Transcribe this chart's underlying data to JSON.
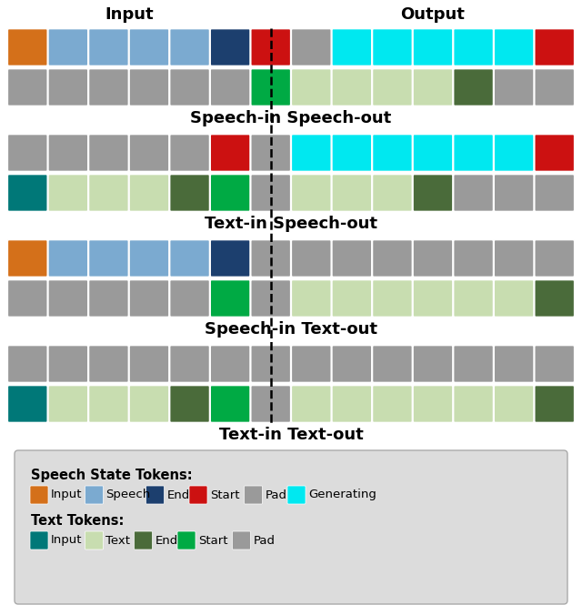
{
  "colors": {
    "speech_input": "#D4701A",
    "speech_token": "#7BAAD0",
    "speech_end": "#1C3F6E",
    "speech_start": "#CC1111",
    "speech_pad": "#9A9A9A",
    "speech_generating": "#00E8F0",
    "text_input": "#007878",
    "text_token": "#C8DDB0",
    "text_end": "#4A6B3A",
    "text_start": "#00AA44",
    "text_pad": "#9A9A9A"
  },
  "sections": [
    {
      "label": "Speech-in Speech-out",
      "row1": [
        "speech_input",
        "speech_token",
        "speech_token",
        "speech_token",
        "speech_token",
        "speech_end",
        "speech_start",
        "speech_pad",
        "speech_generating",
        "speech_generating",
        "speech_generating",
        "speech_generating",
        "speech_generating",
        "speech_start"
      ],
      "row2": [
        "speech_pad",
        "speech_pad",
        "speech_pad",
        "speech_pad",
        "speech_pad",
        "speech_pad",
        "text_start",
        "text_token",
        "text_token",
        "text_token",
        "text_token",
        "text_end",
        "speech_pad",
        "speech_pad"
      ]
    },
    {
      "label": "Text-in Speech-out",
      "row1": [
        "speech_pad",
        "speech_pad",
        "speech_pad",
        "speech_pad",
        "speech_pad",
        "speech_start",
        "speech_pad",
        "speech_generating",
        "speech_generating",
        "speech_generating",
        "speech_generating",
        "speech_generating",
        "speech_generating",
        "speech_start"
      ],
      "row2": [
        "text_input",
        "text_token",
        "text_token",
        "text_token",
        "text_end",
        "text_start",
        "speech_pad",
        "text_token",
        "text_token",
        "text_token",
        "text_end",
        "speech_pad",
        "speech_pad",
        "speech_pad"
      ]
    },
    {
      "label": "Speech-in Text-out",
      "row1": [
        "speech_input",
        "speech_token",
        "speech_token",
        "speech_token",
        "speech_token",
        "speech_end",
        "speech_pad",
        "speech_pad",
        "speech_pad",
        "speech_pad",
        "speech_pad",
        "speech_pad",
        "speech_pad",
        "speech_pad"
      ],
      "row2": [
        "speech_pad",
        "speech_pad",
        "speech_pad",
        "speech_pad",
        "speech_pad",
        "text_start",
        "speech_pad",
        "text_token",
        "text_token",
        "text_token",
        "text_token",
        "text_token",
        "text_token",
        "text_end"
      ]
    },
    {
      "label": "Text-in Text-out",
      "row1": [
        "speech_pad",
        "speech_pad",
        "speech_pad",
        "speech_pad",
        "speech_pad",
        "speech_pad",
        "speech_pad",
        "speech_pad",
        "speech_pad",
        "speech_pad",
        "speech_pad",
        "speech_pad",
        "speech_pad",
        "speech_pad"
      ],
      "row2": [
        "text_input",
        "text_token",
        "text_token",
        "text_token",
        "text_end",
        "text_start",
        "speech_pad",
        "text_token",
        "text_token",
        "text_token",
        "text_token",
        "text_token",
        "text_token",
        "text_end"
      ]
    }
  ],
  "divider_col": 6.5,
  "num_tokens": 14,
  "header_input_col": 3.0,
  "header_output_col": 10.5
}
